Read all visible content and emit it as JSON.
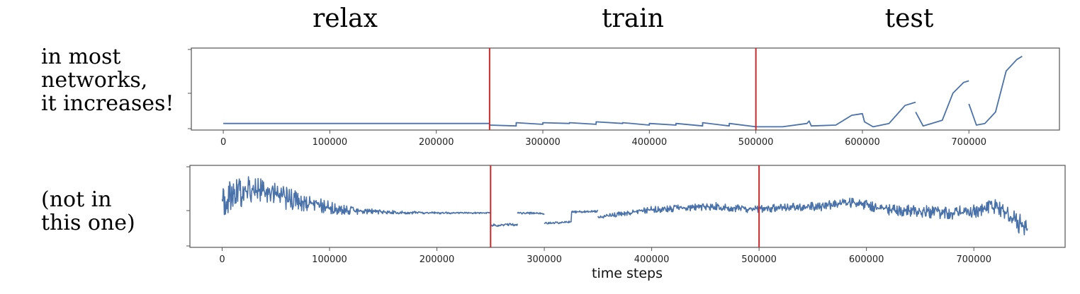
{
  "headings": {
    "relax": "relax",
    "train": "train",
    "test": "test"
  },
  "side_text": {
    "top": [
      "in most",
      "networks,",
      "it increases!"
    ],
    "bottom": [
      "(not in",
      "this one)"
    ]
  },
  "colors": {
    "series": "#4a72aa",
    "divider": "#cc2a2a",
    "axes": "#555555"
  },
  "chart_data": [
    {
      "type": "line",
      "title": "",
      "xlabel": "",
      "ylabel": "",
      "xlim": [
        -30000,
        785000
      ],
      "ylim": [
        0,
        1
      ],
      "xticks": [
        "0",
        "100000",
        "200000",
        "300000",
        "400000",
        "500000",
        "600000",
        "700000"
      ],
      "xtick_values": [
        0,
        100000,
        200000,
        300000,
        400000,
        500000,
        600000,
        700000
      ],
      "dividers": [
        250000,
        500000
      ],
      "grid": false,
      "series": [
        {
          "x": [
            0,
            250000
          ],
          "y": [
            0.08,
            0.08
          ]
        },
        {
          "x": [
            250000,
            275000,
            275001,
            300000,
            300001,
            325000,
            325001,
            350000,
            350001,
            375000,
            375001,
            400000,
            400001,
            425000,
            425001,
            450000,
            450001,
            475000,
            475001,
            500000
          ],
          "y": [
            0.06,
            0.05,
            0.09,
            0.07,
            0.09,
            0.08,
            0.09,
            0.07,
            0.1,
            0.08,
            0.09,
            0.06,
            0.08,
            0.06,
            0.08,
            0.05,
            0.09,
            0.05,
            0.08,
            0.04
          ]
        },
        {
          "x": [
            500000,
            525000,
            548000,
            550000,
            552000,
            575000,
            590000,
            600000,
            602000,
            610000,
            625000,
            640000,
            650000
          ],
          "y": [
            0.04,
            0.04,
            0.08,
            0.11,
            0.05,
            0.06,
            0.18,
            0.2,
            0.1,
            0.04,
            0.08,
            0.3,
            0.34
          ]
        },
        {
          "x": [
            650000,
            657000,
            665000,
            675000,
            685000,
            695000,
            700000
          ],
          "y": [
            0.22,
            0.05,
            0.08,
            0.12,
            0.45,
            0.58,
            0.6
          ]
        },
        {
          "x": [
            700000,
            707000,
            715000,
            725000,
            735000,
            745000,
            750000
          ],
          "y": [
            0.32,
            0.06,
            0.08,
            0.22,
            0.72,
            0.86,
            0.9
          ]
        }
      ]
    },
    {
      "type": "line",
      "title": "",
      "xlabel": "time steps",
      "ylabel": "",
      "xlim": [
        -30000,
        785000
      ],
      "ylim": [
        0,
        1
      ],
      "xticks": [
        "0",
        "100000",
        "200000",
        "300000",
        "400000",
        "500000",
        "600000",
        "700000"
      ],
      "xtick_values": [
        0,
        100000,
        200000,
        300000,
        400000,
        500000,
        600000,
        700000
      ],
      "dividers": [
        250000,
        500000
      ],
      "grid": false,
      "noisy": true,
      "series": [
        {
          "x": [
            0,
            10000,
            20000,
            30000,
            45000,
            60000,
            80000,
            100000,
            120000,
            150000,
            200000,
            250000
          ],
          "y": [
            0.55,
            0.62,
            0.68,
            0.7,
            0.66,
            0.6,
            0.55,
            0.48,
            0.45,
            0.43,
            0.42,
            0.42
          ],
          "noise": [
            0.12,
            0.13,
            0.12,
            0.11,
            0.1,
            0.09,
            0.07,
            0.05,
            0.03,
            0.015,
            0.008,
            0.005
          ]
        },
        {
          "x": [
            250000,
            275000
          ],
          "y": [
            0.27,
            0.28
          ],
          "noise": [
            0.01,
            0.01
          ]
        },
        {
          "x": [
            275000,
            300000
          ],
          "y": [
            0.42,
            0.41
          ],
          "noise": [
            0.008,
            0.008
          ]
        },
        {
          "x": [
            300000,
            325000,
            325001,
            350000
          ],
          "y": [
            0.29,
            0.31,
            0.43,
            0.44
          ],
          "noise": [
            0.008,
            0.008,
            0.008,
            0.008
          ]
        },
        {
          "x": [
            350000,
            375000,
            400000,
            430000,
            460000,
            500000
          ],
          "y": [
            0.36,
            0.42,
            0.46,
            0.48,
            0.5,
            0.46
          ],
          "noise": [
            0.015,
            0.02,
            0.025,
            0.025,
            0.03,
            0.03
          ]
        },
        {
          "x": [
            500000,
            530000,
            560000,
            580000,
            600000,
            620000,
            650000,
            680000,
            700000,
            720000,
            740000,
            750000
          ],
          "y": [
            0.47,
            0.49,
            0.5,
            0.55,
            0.52,
            0.46,
            0.44,
            0.42,
            0.44,
            0.5,
            0.32,
            0.22
          ],
          "noise": [
            0.03,
            0.03,
            0.035,
            0.04,
            0.04,
            0.045,
            0.045,
            0.05,
            0.05,
            0.06,
            0.08,
            0.08
          ]
        }
      ]
    }
  ]
}
